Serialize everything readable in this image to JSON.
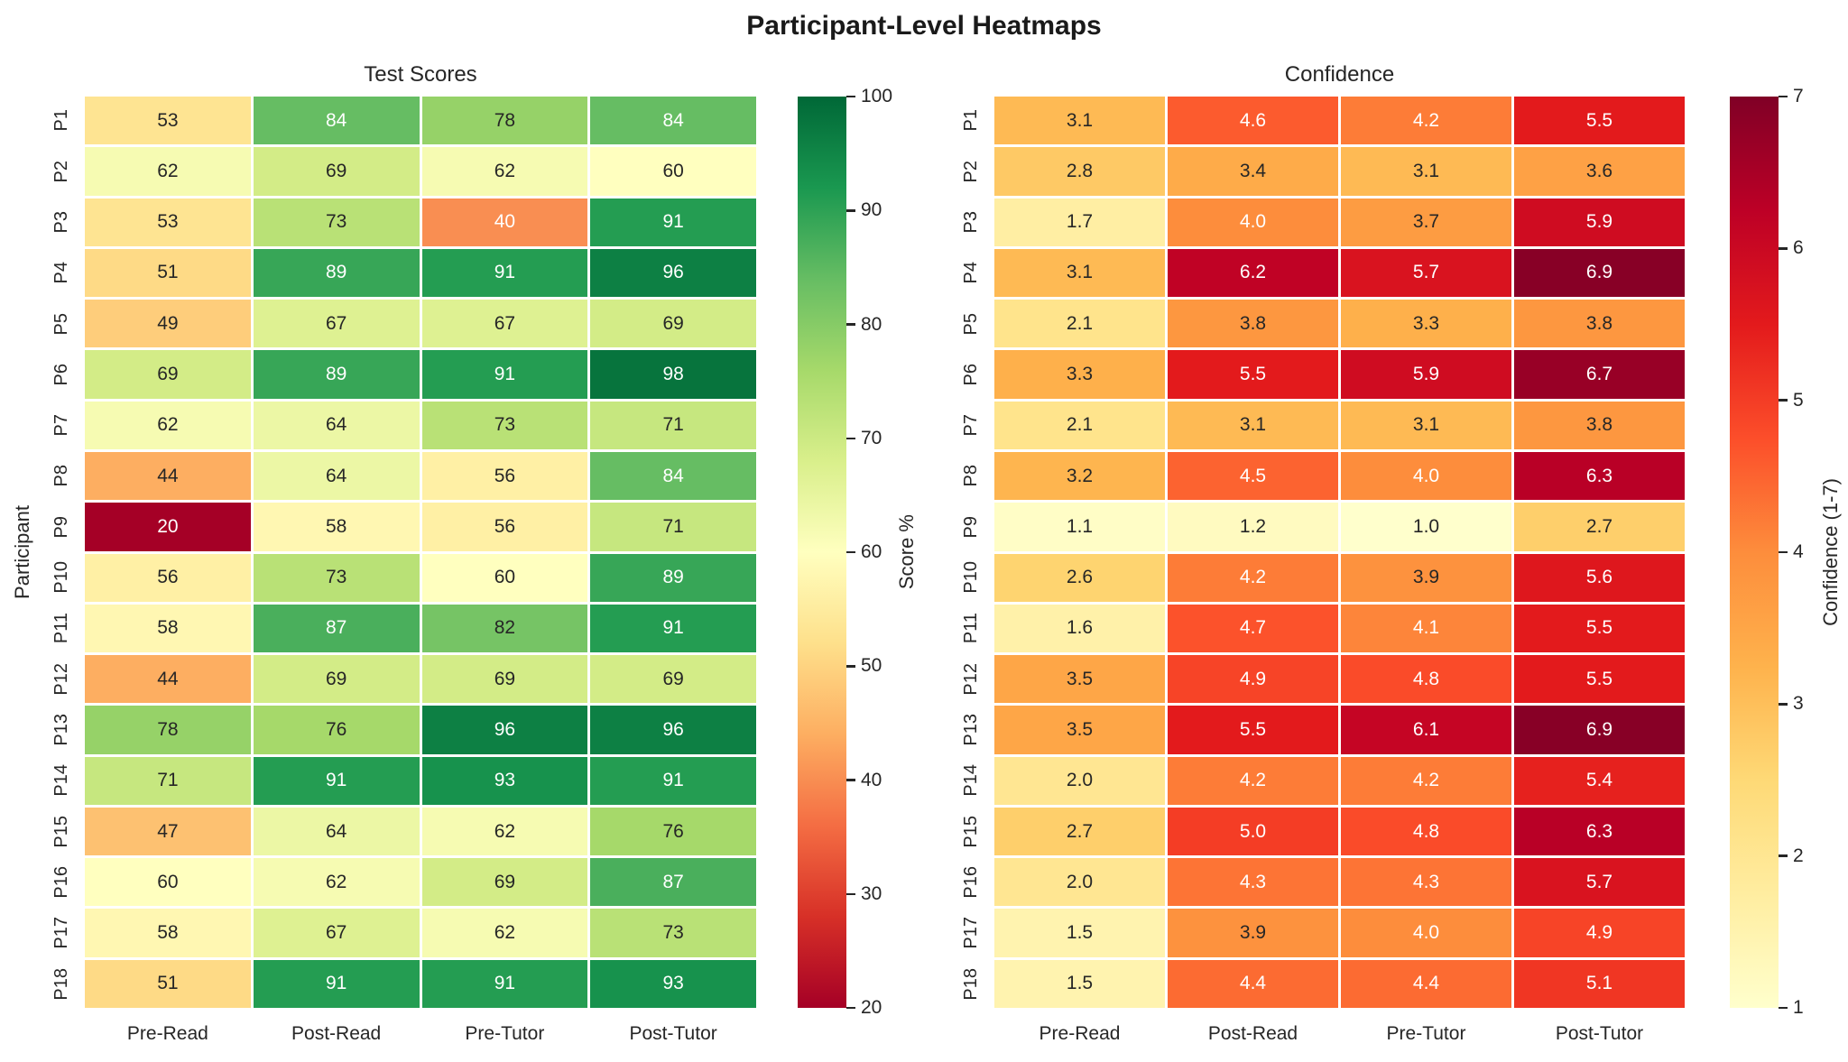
{
  "figure": {
    "title": "Participant-Level Heatmaps"
  },
  "style": {
    "background": "#ffffff",
    "annot_dark": "#262626",
    "annot_light": "#ffffff",
    "cell_gap_color": "#ffffff",
    "luminance_threshold": 0.408
  },
  "chart_data": [
    {
      "type": "heatmap",
      "title": "Test Scores",
      "ylabel": "Participant",
      "columns": [
        "Pre-Read",
        "Post-Read",
        "Pre-Tutor",
        "Post-Tutor"
      ],
      "rows": [
        "P1",
        "P2",
        "P3",
        "P4",
        "P5",
        "P6",
        "P7",
        "P8",
        "P9",
        "P10",
        "P11",
        "P12",
        "P13",
        "P14",
        "P15",
        "P16",
        "P17",
        "P18"
      ],
      "values": [
        [
          53,
          84,
          78,
          84
        ],
        [
          62,
          69,
          62,
          60
        ],
        [
          53,
          73,
          40,
          91
        ],
        [
          51,
          89,
          91,
          96
        ],
        [
          49,
          67,
          67,
          69
        ],
        [
          69,
          89,
          91,
          98
        ],
        [
          62,
          64,
          73,
          71
        ],
        [
          44,
          64,
          56,
          84
        ],
        [
          20,
          58,
          56,
          71
        ],
        [
          56,
          73,
          60,
          89
        ],
        [
          58,
          87,
          82,
          91
        ],
        [
          44,
          69,
          69,
          69
        ],
        [
          78,
          76,
          96,
          96
        ],
        [
          71,
          91,
          93,
          91
        ],
        [
          47,
          64,
          62,
          76
        ],
        [
          60,
          62,
          69,
          87
        ],
        [
          58,
          67,
          62,
          73
        ],
        [
          51,
          91,
          91,
          93
        ]
      ],
      "vmin": 20,
      "vmax": 100,
      "decimals": 0,
      "colormap": "RdYlGn",
      "colormap_stops": [
        "#a50026",
        "#d73027",
        "#f46d43",
        "#fdae61",
        "#fee08b",
        "#ffffbf",
        "#d9ef8b",
        "#a6d96a",
        "#66bd63",
        "#1a9850",
        "#006837"
      ],
      "colorbar": {
        "label": "Score %",
        "ticks": [
          100,
          90,
          80,
          70,
          60,
          50,
          40,
          30,
          20
        ]
      }
    },
    {
      "type": "heatmap",
      "title": "Confidence",
      "ylabel": "",
      "columns": [
        "Pre-Read",
        "Post-Read",
        "Pre-Tutor",
        "Post-Tutor"
      ],
      "rows": [
        "P1",
        "P2",
        "P3",
        "P4",
        "P5",
        "P6",
        "P7",
        "P8",
        "P9",
        "P10",
        "P11",
        "P12",
        "P13",
        "P14",
        "P15",
        "P16",
        "P17",
        "P18"
      ],
      "values": [
        [
          3.1,
          4.6,
          4.2,
          5.5
        ],
        [
          2.8,
          3.4,
          3.1,
          3.6
        ],
        [
          1.7,
          4.0,
          3.7,
          5.9
        ],
        [
          3.1,
          6.2,
          5.7,
          6.9
        ],
        [
          2.1,
          3.8,
          3.3,
          3.8
        ],
        [
          3.3,
          5.5,
          5.9,
          6.7
        ],
        [
          2.1,
          3.1,
          3.1,
          3.8
        ],
        [
          3.2,
          4.5,
          4.0,
          6.3
        ],
        [
          1.1,
          1.2,
          1.0,
          2.7
        ],
        [
          2.6,
          4.2,
          3.9,
          5.6
        ],
        [
          1.6,
          4.7,
          4.1,
          5.5
        ],
        [
          3.5,
          4.9,
          4.8,
          5.5
        ],
        [
          3.5,
          5.5,
          6.1,
          6.9
        ],
        [
          2.0,
          4.2,
          4.2,
          5.4
        ],
        [
          2.7,
          5.0,
          4.8,
          6.3
        ],
        [
          2.0,
          4.3,
          4.3,
          5.7
        ],
        [
          1.5,
          3.9,
          4.0,
          4.9
        ],
        [
          1.5,
          4.4,
          4.4,
          5.1
        ]
      ],
      "vmin": 1,
      "vmax": 7,
      "decimals": 1,
      "colormap": "YlOrRd",
      "colormap_stops": [
        "#ffffcc",
        "#ffeda0",
        "#fed976",
        "#feb24c",
        "#fd8d3c",
        "#fc4e2a",
        "#e31a1c",
        "#bd0026",
        "#800026"
      ],
      "colorbar": {
        "label": "Confidence (1-7)",
        "ticks": [
          7,
          6,
          5,
          4,
          3,
          2,
          1
        ]
      }
    }
  ]
}
